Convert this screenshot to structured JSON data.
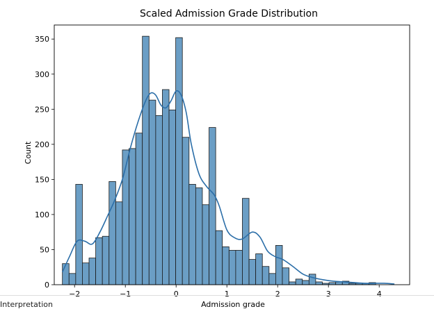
{
  "chart_data": {
    "type": "histogram",
    "title": "Scaled Admission Grade Distribution",
    "xlabel": "Admission grade",
    "ylabel": "Count",
    "xlim": [
      -2.4,
      4.6
    ],
    "ylim": [
      0,
      370
    ],
    "x_ticks": [
      -2,
      -1,
      0,
      1,
      2,
      3,
      4
    ],
    "x_tick_labels": [
      "−2",
      "−1",
      "0",
      "1",
      "2",
      "3",
      "4"
    ],
    "y_ticks": [
      0,
      50,
      100,
      150,
      200,
      250,
      300,
      350
    ],
    "y_tick_labels": [
      "0",
      "50",
      "100",
      "150",
      "200",
      "250",
      "300",
      "350"
    ],
    "bin_start": -2.24,
    "bin_width": 0.1313,
    "counts": [
      30,
      16,
      143,
      31,
      38,
      67,
      69,
      147,
      118,
      192,
      194,
      216,
      354,
      263,
      241,
      278,
      249,
      352,
      210,
      143,
      138,
      114,
      224,
      77,
      54,
      49,
      49,
      123,
      36,
      44,
      26,
      16,
      56,
      24,
      4,
      8,
      6,
      15,
      4,
      2,
      3,
      4,
      5,
      2,
      2,
      2,
      3
    ],
    "kde_x": [
      -2.24,
      -2.1,
      -1.95,
      -1.8,
      -1.65,
      -1.5,
      -1.35,
      -1.2,
      -1.05,
      -0.9,
      -0.75,
      -0.6,
      -0.5,
      -0.4,
      -0.3,
      -0.2,
      -0.1,
      0.0,
      0.1,
      0.2,
      0.3,
      0.45,
      0.6,
      0.75,
      0.85,
      1.0,
      1.15,
      1.3,
      1.5,
      1.65,
      1.8,
      1.95,
      2.1,
      2.3,
      2.5,
      2.7,
      2.9,
      3.1,
      3.3,
      3.5,
      3.7,
      3.9,
      4.1,
      4.3
    ],
    "kde_y": [
      18,
      40,
      62,
      62,
      58,
      75,
      98,
      122,
      152,
      195,
      232,
      262,
      273,
      270,
      256,
      252,
      262,
      276,
      270,
      245,
      200,
      158,
      140,
      128,
      112,
      78,
      67,
      65,
      75,
      68,
      48,
      40,
      36,
      26,
      15,
      10,
      7,
      5,
      4,
      3,
      2,
      2,
      2,
      1
    ],
    "bar_color": "#6b9ec5",
    "bar_edge_color": "#1a1a1a",
    "kde_color": "#2b6ea8",
    "grid": false,
    "legend": "none"
  },
  "notes": {
    "bottom_text": "Interpretation"
  }
}
